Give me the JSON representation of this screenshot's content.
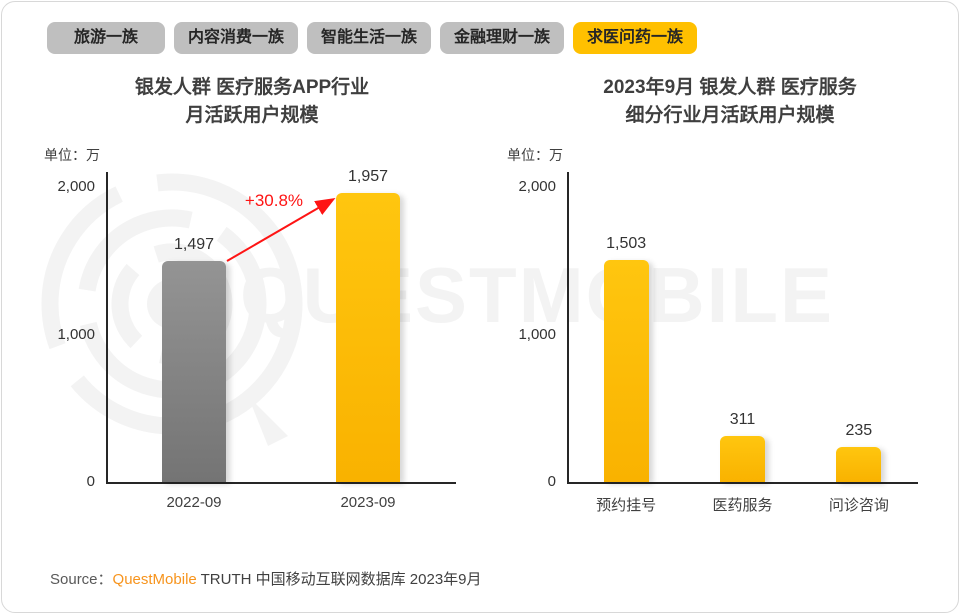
{
  "tabs": [
    {
      "name": "tab-travel",
      "label": "旅游一族",
      "selected": false
    },
    {
      "name": "tab-content-consumption",
      "label": "内容消费一族",
      "selected": false
    },
    {
      "name": "tab-smart-life",
      "label": "智能生活一族",
      "selected": false
    },
    {
      "name": "tab-finance",
      "label": "金融理财一族",
      "selected": false
    },
    {
      "name": "tab-medical",
      "label": "求医问药一族",
      "selected": true
    }
  ],
  "colors": {
    "accent_yellow": "#FFC000",
    "tab_gray": "#BFBFBF",
    "bar_gray": "#8C8C8C",
    "arrow_red": "#FE1414",
    "source_orange": "#F7941D",
    "watermark": "#F3F3F3",
    "text_dark": "#404040"
  },
  "watermark_text": "QUESTMOBILE",
  "chart_data": [
    {
      "type": "bar",
      "title_lines": [
        "银发人群 医疗服务APP行业",
        "月活跃用户规模"
      ],
      "unit_label": "单位：万",
      "categories": [
        "2022-09",
        "2023-09"
      ],
      "values": [
        1497,
        1957
      ],
      "value_labels": [
        "1,497",
        "1,957"
      ],
      "bar_styles": [
        "gray",
        "yellow"
      ],
      "ylim": [
        0,
        2000
      ],
      "yticks": [
        0,
        1000,
        2000
      ],
      "ytick_labels": [
        "0",
        "1,000",
        "2,000"
      ],
      "grid": false,
      "annotation": {
        "text": "+30.8%"
      }
    },
    {
      "type": "bar",
      "title_lines": [
        "2023年9月 银发人群 医疗服务",
        "细分行业月活跃用户规模"
      ],
      "unit_label": "单位：万",
      "categories": [
        "预约挂号",
        "医药服务",
        "问诊咨询"
      ],
      "values": [
        1503,
        311,
        235
      ],
      "value_labels": [
        "1,503",
        "311",
        "235"
      ],
      "bar_styles": [
        "yellow",
        "yellow",
        "yellow"
      ],
      "ylim": [
        0,
        2000
      ],
      "yticks": [
        0,
        1000,
        2000
      ],
      "ytick_labels": [
        "0",
        "1,000",
        "2,000"
      ],
      "grid": false
    }
  ],
  "source": {
    "prefix": "Source：",
    "brand": "QuestMobile",
    "rest": " TRUTH 中国移动互联网数据库 2023年9月"
  }
}
